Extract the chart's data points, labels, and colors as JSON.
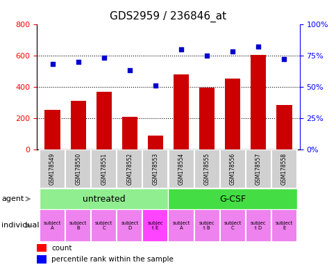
{
  "title": "GDS2959 / 236846_at",
  "samples": [
    "GSM178549",
    "GSM178550",
    "GSM178551",
    "GSM178552",
    "GSM178553",
    "GSM178554",
    "GSM178555",
    "GSM178556",
    "GSM178557",
    "GSM178558"
  ],
  "counts": [
    252,
    310,
    370,
    210,
    88,
    480,
    393,
    453,
    605,
    285
  ],
  "percentile_ranks": [
    68,
    70,
    73,
    63,
    51,
    80,
    75,
    78,
    82,
    72
  ],
  "agent_untreated_color": "#90EE90",
  "agent_gcsf_color": "#44DD44",
  "individual_labels": [
    "subject\nA",
    "subject\nB",
    "subject\nC",
    "subject\nD",
    "subjec\nt E",
    "subject\nA",
    "subjec\nt B",
    "subject\nC",
    "subjec\nt D",
    "subject\nE"
  ],
  "individual_colors": [
    "#EE82EE",
    "#EE82EE",
    "#EE82EE",
    "#EE82EE",
    "#FF44FF",
    "#EE82EE",
    "#EE82EE",
    "#EE82EE",
    "#EE82EE",
    "#EE82EE"
  ],
  "bar_color": "#CC0000",
  "dot_color": "#0000CC",
  "ylim_left": [
    0,
    800
  ],
  "ylim_right": [
    0,
    100
  ],
  "yticks_left": [
    0,
    200,
    400,
    600,
    800
  ],
  "yticks_right": [
    0,
    25,
    50,
    75,
    100
  ],
  "ytick_labels_right": [
    "0%",
    "25%",
    "50%",
    "75%",
    "100%"
  ],
  "grid_values": [
    200,
    400,
    600
  ],
  "bar_width": 0.6
}
